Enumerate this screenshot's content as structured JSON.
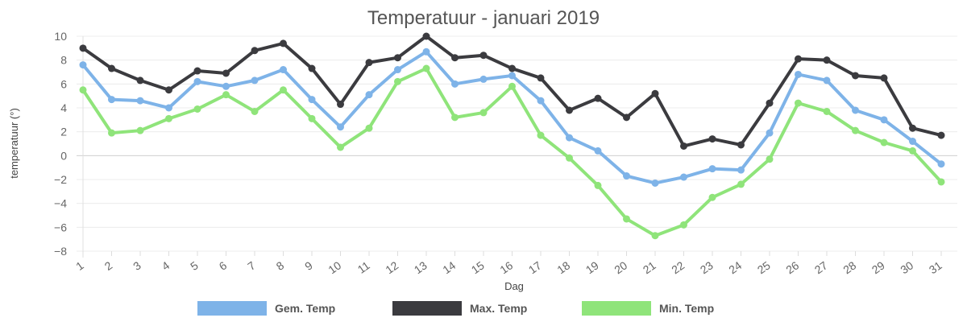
{
  "chart_data": {
    "type": "line",
    "title": "Temperatuur - januari 2019",
    "xlabel": "Dag",
    "ylabel": "temperatuur (°)",
    "categories": [
      "1",
      "2",
      "3",
      "4",
      "5",
      "6",
      "7",
      "8",
      "9",
      "10",
      "11",
      "12",
      "13",
      "14",
      "15",
      "16",
      "17",
      "18",
      "19",
      "20",
      "21",
      "22",
      "23",
      "24",
      "25",
      "26",
      "27",
      "28",
      "29",
      "30",
      "31"
    ],
    "yticks": [
      "10",
      "8",
      "6",
      "4",
      "2",
      "0",
      "−2",
      "−4",
      "−6",
      "−8"
    ],
    "ylim": [
      -8,
      10
    ],
    "grid": true,
    "legend_position": "bottom",
    "series": [
      {
        "name": "Gem. Temp",
        "color": "#7eb3e8",
        "values": [
          7.6,
          4.7,
          4.6,
          4.0,
          6.2,
          5.8,
          6.3,
          7.2,
          4.7,
          2.4,
          5.1,
          7.2,
          8.7,
          6.0,
          6.4,
          6.7,
          4.6,
          1.5,
          0.4,
          -1.7,
          -2.3,
          -1.8,
          -1.1,
          -1.2,
          1.9,
          6.8,
          6.3,
          3.8,
          3.0,
          1.2,
          -0.7
        ]
      },
      {
        "name": "Max. Temp",
        "color": "#3b3b3f",
        "values": [
          9.0,
          7.3,
          6.3,
          5.5,
          7.1,
          6.9,
          8.8,
          9.4,
          7.3,
          4.3,
          7.8,
          8.2,
          10.0,
          8.2,
          8.4,
          7.3,
          6.5,
          3.8,
          4.8,
          3.2,
          5.2,
          0.8,
          1.4,
          0.9,
          4.4,
          8.1,
          8.0,
          6.7,
          6.5,
          2.3,
          1.7
        ]
      },
      {
        "name": "Min. Temp",
        "color": "#8fe47a",
        "values": [
          5.5,
          1.9,
          2.1,
          3.1,
          3.9,
          5.1,
          3.7,
          5.5,
          3.1,
          0.7,
          2.3,
          6.2,
          7.3,
          3.2,
          3.6,
          5.8,
          1.7,
          -0.2,
          -2.5,
          -5.3,
          -6.7,
          -5.8,
          -3.5,
          -2.4,
          -0.3,
          4.4,
          3.7,
          2.1,
          1.1,
          0.4,
          -2.2
        ]
      }
    ]
  }
}
